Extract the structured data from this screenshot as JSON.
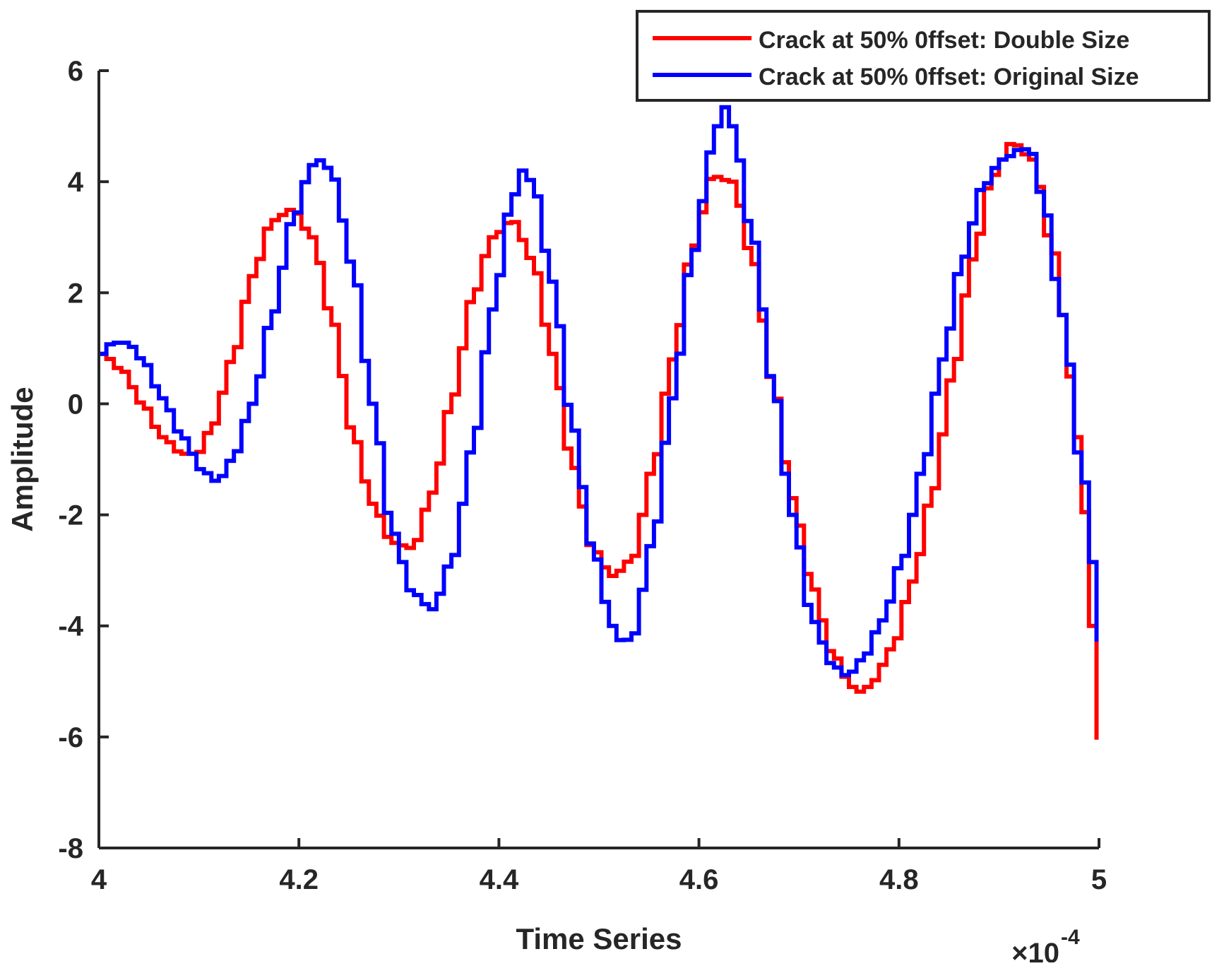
{
  "chart_data": {
    "type": "line",
    "title": "",
    "xlabel": "Time Series",
    "ylabel": "Amplitude",
    "x_exponent_label": "×10",
    "x_exponent_power": "-4",
    "x_scale_factor": 0.0001,
    "xlim": [
      4,
      5
    ],
    "ylim": [
      -8,
      6
    ],
    "x_ticks": [
      4,
      4.2,
      4.4,
      4.6,
      4.8,
      5
    ],
    "x_tick_labels": [
      "4",
      "4.2",
      "4.4",
      "4.6",
      "4.8",
      "5"
    ],
    "y_ticks": [
      -8,
      -6,
      -4,
      -2,
      0,
      2,
      4,
      6
    ],
    "y_tick_labels": [
      "-8",
      "-6",
      "-4",
      "-2",
      "0",
      "2",
      "4",
      "6"
    ],
    "grid": false,
    "legend_position": "top-right",
    "step_style": "staircase",
    "series": [
      {
        "name": "Crack at 50% 0ffset: Double Size",
        "color": "#ff0000",
        "x": [
          4.0,
          4.02,
          4.04,
          4.06,
          4.08,
          4.095,
          4.11,
          4.13,
          4.15,
          4.17,
          4.19,
          4.21,
          4.23,
          4.25,
          4.27,
          4.29,
          4.31,
          4.33,
          4.35,
          4.37,
          4.39,
          4.41,
          4.43,
          4.45,
          4.47,
          4.49,
          4.51,
          4.53,
          4.55,
          4.57,
          4.59,
          4.61,
          4.63,
          4.65,
          4.67,
          4.69,
          4.71,
          4.73,
          4.75,
          4.76,
          4.77,
          4.79,
          4.81,
          4.83,
          4.85,
          4.87,
          4.89,
          4.91,
          4.93,
          4.95,
          4.97,
          4.98,
          4.99,
          5.0
        ],
        "y": [
          0.9,
          0.6,
          0.0,
          -0.6,
          -0.9,
          -0.9,
          -0.4,
          0.8,
          2.3,
          3.3,
          3.5,
          3.0,
          1.5,
          -0.5,
          -1.8,
          -2.5,
          -2.6,
          -1.6,
          0.1,
          1.9,
          3.0,
          3.3,
          2.6,
          0.9,
          -1.1,
          -2.6,
          -3.1,
          -2.8,
          -1.2,
          0.8,
          2.8,
          4.1,
          4.0,
          2.6,
          0.4,
          -1.7,
          -3.3,
          -4.5,
          -5.1,
          -5.2,
          -5.0,
          -4.4,
          -3.2,
          -1.6,
          0.5,
          2.6,
          4.1,
          4.7,
          4.4,
          2.8,
          0.4,
          -1.6,
          -4.0,
          -6.4
        ]
      },
      {
        "name": "Crack at 50% 0ffset: Original Size",
        "color": "#0000ff",
        "x": [
          4.0,
          4.01,
          4.025,
          4.04,
          4.06,
          4.08,
          4.1,
          4.115,
          4.13,
          4.15,
          4.17,
          4.19,
          4.21,
          4.22,
          4.23,
          4.25,
          4.27,
          4.29,
          4.31,
          4.33,
          4.35,
          4.37,
          4.39,
          4.41,
          4.42,
          4.43,
          4.45,
          4.47,
          4.49,
          4.51,
          4.52,
          4.53,
          4.55,
          4.57,
          4.59,
          4.61,
          4.62,
          4.63,
          4.65,
          4.67,
          4.69,
          4.71,
          4.73,
          4.745,
          4.76,
          4.78,
          4.8,
          4.82,
          4.84,
          4.86,
          4.88,
          4.9,
          4.92,
          4.93,
          4.94,
          4.96,
          4.98,
          5.0
        ],
        "y": [
          0.9,
          1.1,
          1.1,
          0.8,
          0.1,
          -0.6,
          -1.2,
          -1.4,
          -1.0,
          0.0,
          1.6,
          3.3,
          4.3,
          4.4,
          4.1,
          2.5,
          0.0,
          -2.3,
          -3.4,
          -3.7,
          -2.8,
          -0.8,
          1.7,
          3.7,
          4.2,
          4.0,
          2.2,
          -0.4,
          -2.6,
          -4.0,
          -4.3,
          -4.2,
          -2.5,
          0.1,
          2.7,
          4.6,
          5.4,
          5.0,
          3.0,
          0.4,
          -2.0,
          -3.9,
          -4.7,
          -4.9,
          -4.6,
          -3.9,
          -2.8,
          -1.2,
          0.8,
          2.6,
          3.9,
          4.4,
          4.6,
          4.5,
          3.7,
          1.6,
          -1.3,
          -4.4
        ]
      }
    ]
  }
}
